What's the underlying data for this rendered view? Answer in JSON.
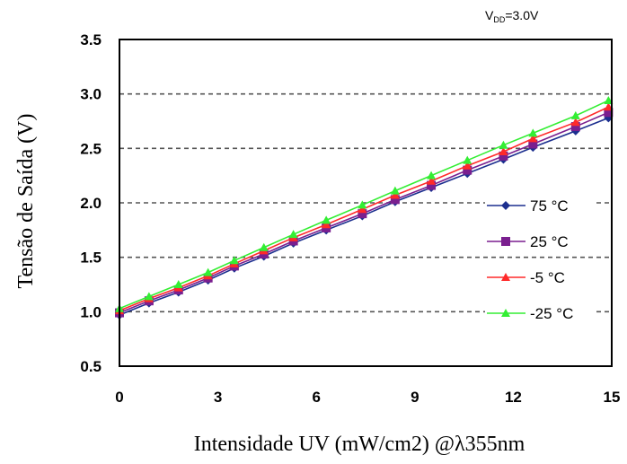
{
  "chart_data": {
    "type": "line",
    "title": "",
    "annotation": {
      "prefix": "V",
      "sub": "DD",
      "rest": "=3.0V"
    },
    "xlabel": "Intensidade UV (mW/cm2) @λ355nm",
    "ylabel": "Tensão de Saída (V)",
    "xlim": [
      0,
      15
    ],
    "ylim": [
      0.5,
      3.5
    ],
    "xticks": [
      0,
      3,
      6,
      9,
      12,
      15
    ],
    "yticks": [
      0.5,
      1.0,
      1.5,
      2.0,
      2.5,
      3.0,
      3.5
    ],
    "xtick_labels": [
      "0",
      "3",
      "6",
      "9",
      "12",
      "15"
    ],
    "ytick_labels": [
      "0.5",
      "1.0",
      "1.5",
      "2.0",
      "2.5",
      "3.0",
      "3.5"
    ],
    "grid": "horizontal dashed",
    "legend_position": "right-center",
    "x": [
      0,
      0.9,
      1.8,
      2.7,
      3.5,
      4.4,
      5.3,
      6.3,
      7.4,
      8.4,
      9.5,
      10.6,
      11.7,
      12.6,
      13.9,
      14.9
    ],
    "series": [
      {
        "name": "75 °C",
        "color": "#1c2f8f",
        "marker": "diamond",
        "values": [
          0.97,
          1.08,
          1.18,
          1.29,
          1.4,
          1.51,
          1.63,
          1.75,
          1.88,
          2.01,
          2.14,
          2.27,
          2.4,
          2.51,
          2.66,
          2.78
        ]
      },
      {
        "name": "25 °C",
        "color": "#7a1f8f",
        "marker": "square",
        "values": [
          0.99,
          1.1,
          1.2,
          1.31,
          1.42,
          1.53,
          1.65,
          1.77,
          1.9,
          2.03,
          2.16,
          2.3,
          2.43,
          2.54,
          2.7,
          2.83
        ]
      },
      {
        "name": "-5 °C",
        "color": "#ff2a2a",
        "marker": "triangle",
        "values": [
          1.01,
          1.12,
          1.22,
          1.33,
          1.44,
          1.56,
          1.68,
          1.8,
          1.94,
          2.07,
          2.2,
          2.34,
          2.47,
          2.59,
          2.74,
          2.88
        ]
      },
      {
        "name": "-25 °C",
        "color": "#33ee33",
        "marker": "triangle",
        "values": [
          1.03,
          1.14,
          1.25,
          1.36,
          1.47,
          1.59,
          1.71,
          1.84,
          1.98,
          2.11,
          2.25,
          2.39,
          2.53,
          2.64,
          2.8,
          2.94
        ]
      }
    ]
  }
}
